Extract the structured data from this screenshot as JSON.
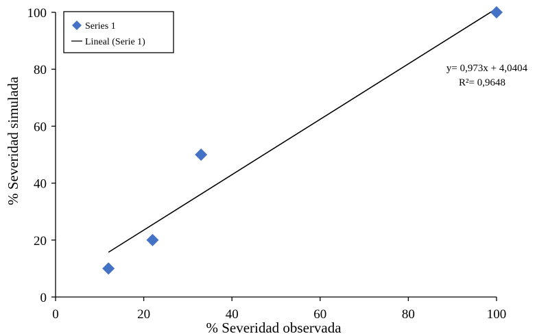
{
  "chart_data": {
    "type": "scatter",
    "xlabel": "% Severidad observada",
    "ylabel": "% Severidad simulada",
    "xlim": [
      0,
      100
    ],
    "ylim": [
      0,
      100
    ],
    "xticks": [
      "0",
      "20",
      "40",
      "60",
      "80",
      "100"
    ],
    "yticks": [
      "0",
      "20",
      "40",
      "60",
      "80",
      "100"
    ],
    "grid": false,
    "legend": {
      "placement": "top-left",
      "entries": [
        "Series 1",
        "Lineal (Serie 1)"
      ]
    },
    "series": [
      {
        "name": "Series 1",
        "marker": "diamond",
        "color": "#4472C4",
        "points": [
          {
            "x": 12,
            "y": 10
          },
          {
            "x": 22,
            "y": 20
          },
          {
            "x": 33,
            "y": 50
          },
          {
            "x": 100,
            "y": 100
          }
        ]
      }
    ],
    "trendline": {
      "name": "Lineal (Serie 1)",
      "slope": 0.973,
      "intercept": 4.0404,
      "x_range": [
        12,
        100
      ],
      "color": "#000000"
    },
    "annotations": {
      "equation": "y= 0,973x + 4,0404",
      "r_squared": "R²= 0,9648"
    }
  }
}
